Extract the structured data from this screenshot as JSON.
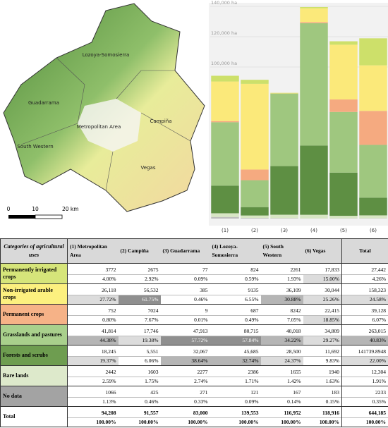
{
  "map": {
    "labels": [
      "Lozoya-Somosierra",
      "Guadarrama",
      "Metropolitan Area",
      "Campiña",
      "South Western",
      "Vegas"
    ],
    "scale": [
      "0",
      "10",
      "20 km"
    ]
  },
  "chart_data": {
    "type": "bar",
    "stacked": true,
    "categories": [
      "(1)",
      "(2)",
      "(3)",
      "(4)",
      "(5)",
      "(6)"
    ],
    "series": [
      {
        "color": "#bdbdbd",
        "values": [
          1066,
          425,
          271,
          121,
          167,
          183
        ]
      },
      {
        "color": "#d8e6c4",
        "values": [
          2442,
          1603,
          2277,
          2386,
          1655,
          1940
        ]
      },
      {
        "color": "#5e8f43",
        "values": [
          18245,
          5551,
          32067,
          45685,
          28500,
          11692
        ]
      },
      {
        "color": "#9fc77f",
        "values": [
          41814,
          17746,
          47913,
          80715,
          40018,
          34809
        ]
      },
      {
        "color": "#f5aa80",
        "values": [
          752,
          7024,
          9,
          687,
          8242,
          22415
        ]
      },
      {
        "color": "#fbe97a",
        "values": [
          26118,
          56532,
          385,
          9135,
          36109,
          30044
        ]
      },
      {
        "color": "#cde06a",
        "values": [
          3772,
          2675,
          77,
          824,
          2261,
          17833
        ]
      }
    ],
    "ylim": [
      0,
      140000
    ],
    "yticks": [
      {
        "value": 100000,
        "label": "100,000 ha"
      },
      {
        "value": 120000,
        "label": "120,000 ha"
      },
      {
        "value": 140000,
        "label": "140,000 ha"
      }
    ],
    "grid": true
  },
  "table": {
    "header": [
      "Categories of agricultural uses",
      "(1) Metropolitan Area",
      "(2) Campiña",
      "(3) Guadarrama",
      "(4) Lozoya-Somosierra",
      "(5) South Western",
      "(6) Vegas",
      "Total"
    ],
    "rows": [
      {
        "label": "Permanently irrigated crops",
        "color": "#d6e57a",
        "values": [
          "3772",
          "2675",
          "77",
          "824",
          "2261",
          "17,833",
          "27,442"
        ],
        "percents": [
          "4.00%",
          "2.92%",
          "0.09%",
          "0.59%",
          "1.93%",
          "15.00%",
          "4.26%"
        ]
      },
      {
        "label": "Non-irrigated arable crops",
        "color": "#fcf07f",
        "values": [
          "26,118",
          "56,532",
          "385",
          "9135",
          "36,109",
          "30,044",
          "158,323"
        ],
        "percents": [
          "27.72%",
          "61.75%",
          "0.46%",
          "6.55%",
          "30.88%",
          "25.26%",
          "24.58%"
        ]
      },
      {
        "label": "Permanent crops",
        "color": "#f6b287",
        "values": [
          "752",
          "7024",
          "9",
          "687",
          "8242",
          "22,415",
          "39,128"
        ],
        "percents": [
          "0.80%",
          "7.67%",
          "0.01%",
          "0.49%",
          "7.05%",
          "18.85%",
          "6.07%"
        ]
      },
      {
        "label": "Grasslands and pastures",
        "color": "#a9d08c",
        "values": [
          "41,814",
          "17,746",
          "47,913",
          "80,715",
          "40,018",
          "34,809",
          "263,015"
        ],
        "percents": [
          "44.38%",
          "19.38%",
          "57.72%",
          "57.84%",
          "34.22%",
          "29.27%",
          "40.83%"
        ]
      },
      {
        "label": "Forests and scrubs",
        "color": "#6e9d50",
        "values": [
          "18,245",
          "5,551",
          "32,067",
          "45,685",
          "28,500",
          "11,692",
          "141739.8948"
        ],
        "percents": [
          "19.37%",
          "6.06%",
          "38.64%",
          "32.74%",
          "24.37%",
          "9.83%",
          "22.00%"
        ]
      },
      {
        "label": "Bare lands",
        "color": "#dde9cb",
        "values": [
          "2442",
          "1603",
          "2277",
          "2386",
          "1655",
          "1940",
          "12,304"
        ],
        "percents": [
          "2.59%",
          "1.75%",
          "2.74%",
          "1.71%",
          "1.42%",
          "1.63%",
          "1.91%"
        ]
      },
      {
        "label": "No data",
        "color": "#a3a3a3",
        "values": [
          "1066",
          "425",
          "271",
          "121",
          "167",
          "183",
          "2233"
        ],
        "percents": [
          "1.13%",
          "0.46%",
          "0.33%",
          "0.09%",
          "0.14%",
          "0.15%",
          "0.35%"
        ]
      },
      {
        "label": "Total",
        "color": "#ffffff",
        "values": [
          "94,208",
          "91,557",
          "83,000",
          "139,553",
          "116,952",
          "118,916",
          "644,185"
        ],
        "percents": [
          "100.00%",
          "100.00%",
          "100.00%",
          "100.00%",
          "100.00%",
          "100.00%",
          "100.00%"
        ]
      }
    ]
  }
}
